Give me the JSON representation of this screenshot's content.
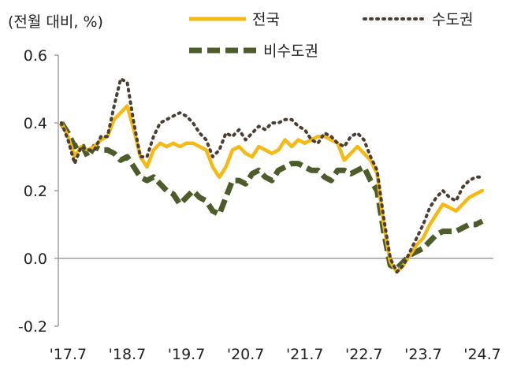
{
  "chart_data": {
    "type": "line",
    "unit_label": "(전월 대비, %)",
    "ylim": [
      -0.2,
      0.6
    ],
    "y_ticks": [
      "0.6",
      "0.4",
      "0.2",
      "0.0",
      "-0.2"
    ],
    "x_tick_labels": [
      "'17.7",
      "'18.7",
      "'19.7",
      "'20.7",
      "'21.7",
      "'22.7",
      "'23.7",
      "'24.7"
    ],
    "x_period": "2017-07 to 2024-08 (monthly)",
    "grid": false,
    "legend_position": "top",
    "series": [
      {
        "name": "전국",
        "color": "#F5B914",
        "style": "solid",
        "values": [
          0.4,
          0.36,
          0.3,
          0.33,
          0.32,
          0.33,
          0.35,
          0.36,
          0.41,
          0.43,
          0.45,
          0.38,
          0.3,
          0.27,
          0.32,
          0.34,
          0.33,
          0.34,
          0.33,
          0.34,
          0.34,
          0.33,
          0.32,
          0.27,
          0.24,
          0.27,
          0.32,
          0.33,
          0.31,
          0.3,
          0.33,
          0.32,
          0.31,
          0.32,
          0.35,
          0.33,
          0.35,
          0.34,
          0.35,
          0.36,
          0.36,
          0.35,
          0.34,
          0.29,
          0.31,
          0.33,
          0.31,
          0.29,
          0.25,
          0.1,
          -0.01,
          -0.04,
          -0.02,
          0.01,
          0.04,
          0.06,
          0.1,
          0.13,
          0.16,
          0.15,
          0.14,
          0.16,
          0.18,
          0.19,
          0.2
        ]
      },
      {
        "name": "수도권",
        "color": "#4A3F35",
        "style": "dotted",
        "values": [
          0.4,
          0.35,
          0.28,
          0.33,
          0.32,
          0.32,
          0.36,
          0.36,
          0.45,
          0.53,
          0.52,
          0.4,
          0.3,
          0.3,
          0.36,
          0.4,
          0.41,
          0.42,
          0.43,
          0.42,
          0.4,
          0.37,
          0.35,
          0.3,
          0.32,
          0.37,
          0.36,
          0.38,
          0.35,
          0.37,
          0.39,
          0.38,
          0.4,
          0.4,
          0.41,
          0.41,
          0.39,
          0.38,
          0.35,
          0.34,
          0.37,
          0.36,
          0.34,
          0.33,
          0.36,
          0.37,
          0.35,
          0.3,
          0.26,
          0.12,
          0.0,
          -0.04,
          -0.02,
          0.02,
          0.06,
          0.1,
          0.15,
          0.18,
          0.2,
          0.18,
          0.17,
          0.21,
          0.23,
          0.24,
          0.24
        ]
      },
      {
        "name": "비수도권",
        "color": "#4E5B2A",
        "style": "dashed",
        "values": [
          0.4,
          0.37,
          0.33,
          0.34,
          0.3,
          0.33,
          0.32,
          0.32,
          0.31,
          0.29,
          0.3,
          0.27,
          0.24,
          0.23,
          0.24,
          0.22,
          0.2,
          0.19,
          0.16,
          0.18,
          0.2,
          0.18,
          0.17,
          0.14,
          0.13,
          0.18,
          0.23,
          0.23,
          0.22,
          0.25,
          0.26,
          0.24,
          0.23,
          0.26,
          0.27,
          0.28,
          0.28,
          0.27,
          0.26,
          0.26,
          0.24,
          0.23,
          0.26,
          0.26,
          0.25,
          0.26,
          0.27,
          0.23,
          0.2,
          0.08,
          -0.02,
          -0.03,
          -0.01,
          0.01,
          0.02,
          0.03,
          0.05,
          0.07,
          0.08,
          0.08,
          0.08,
          0.09,
          0.1,
          0.1,
          0.11
        ]
      }
    ]
  }
}
